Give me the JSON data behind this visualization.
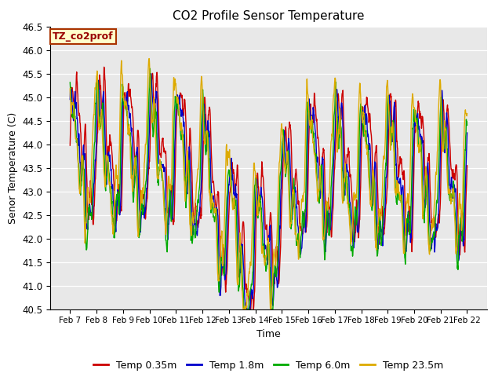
{
  "title": "CO2 Profile Sensor Temperature",
  "ylabel": "Senor Temperature (C)",
  "xlabel": "Time",
  "ylim": [
    40.5,
    46.5
  ],
  "yticks": [
    40.5,
    41.0,
    41.5,
    42.0,
    42.5,
    43.0,
    43.5,
    44.0,
    44.5,
    45.0,
    45.5,
    46.0,
    46.5
  ],
  "xtick_labels": [
    "Feb 7",
    "Feb 8",
    "Feb 9",
    "Feb 10",
    "Feb 11",
    "Feb 12",
    "Feb 13",
    "Feb 14",
    "Feb 15",
    "Feb 16",
    "Feb 17",
    "Feb 18",
    "Feb 19",
    "Feb 20",
    "Feb 21",
    "Feb 22"
  ],
  "line_colors": [
    "#cc0000",
    "#0000cc",
    "#00aa00",
    "#ddaa00"
  ],
  "line_labels": [
    "Temp 0.35m",
    "Temp 1.8m",
    "Temp 6.0m",
    "Temp 23.5m"
  ],
  "annotation_text": "TZ_co2prof",
  "annotation_bg": "#ffffcc",
  "annotation_edge": "#aa3300",
  "bg_color": "#e8e8e8",
  "line_width": 1.0,
  "n_days": 15,
  "points_per_day": 96
}
